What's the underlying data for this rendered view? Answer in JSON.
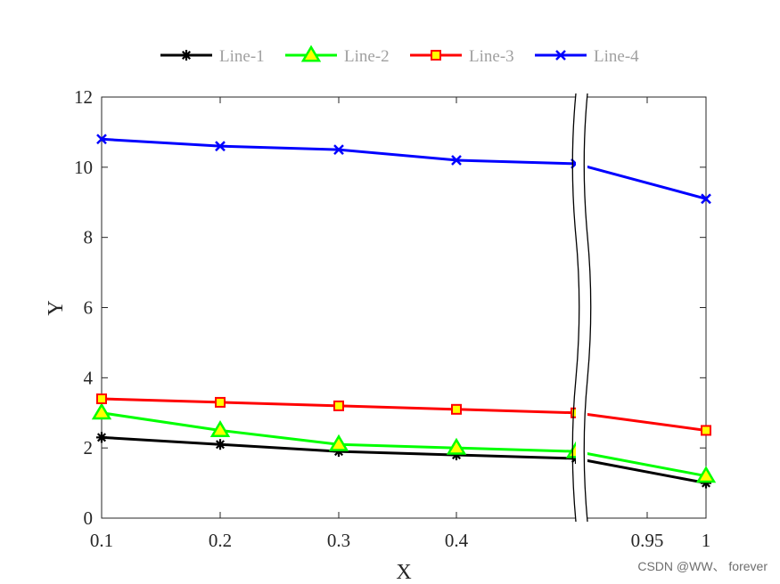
{
  "chart_data": {
    "type": "line",
    "title": "",
    "xlabel": "X",
    "ylabel": "Y",
    "ylim": [
      0,
      12
    ],
    "yticks": [
      0,
      2,
      4,
      6,
      8,
      10,
      12
    ],
    "axis_break": "between 0.5 and 0.95 on the x-axis",
    "x": [
      0.1,
      0.2,
      0.3,
      0.4,
      0.5,
      1
    ],
    "xtick_labels": [
      "0.1",
      "0.2",
      "0.3",
      "0.4",
      "0.95",
      "1"
    ],
    "legend_position": "top",
    "series": [
      {
        "name": "Line-1",
        "color": "#000000",
        "marker": "asterisk",
        "values": [
          2.3,
          2.1,
          1.9,
          1.8,
          1.7,
          1.0
        ]
      },
      {
        "name": "Line-2",
        "color": "#00ff00",
        "marker_fill": "#ffff00",
        "marker": "triangle",
        "values": [
          3.0,
          2.5,
          2.1,
          2.0,
          1.9,
          1.2
        ]
      },
      {
        "name": "Line-3",
        "color": "#ff0000",
        "marker_fill": "#ffff00",
        "marker": "square",
        "values": [
          3.4,
          3.3,
          3.2,
          3.1,
          3.0,
          2.5
        ]
      },
      {
        "name": "Line-4",
        "color": "#0000ff",
        "marker": "x",
        "values": [
          10.8,
          10.6,
          10.5,
          10.2,
          10.1,
          9.1
        ]
      }
    ]
  },
  "watermark": "CSDN @WW、 forever"
}
